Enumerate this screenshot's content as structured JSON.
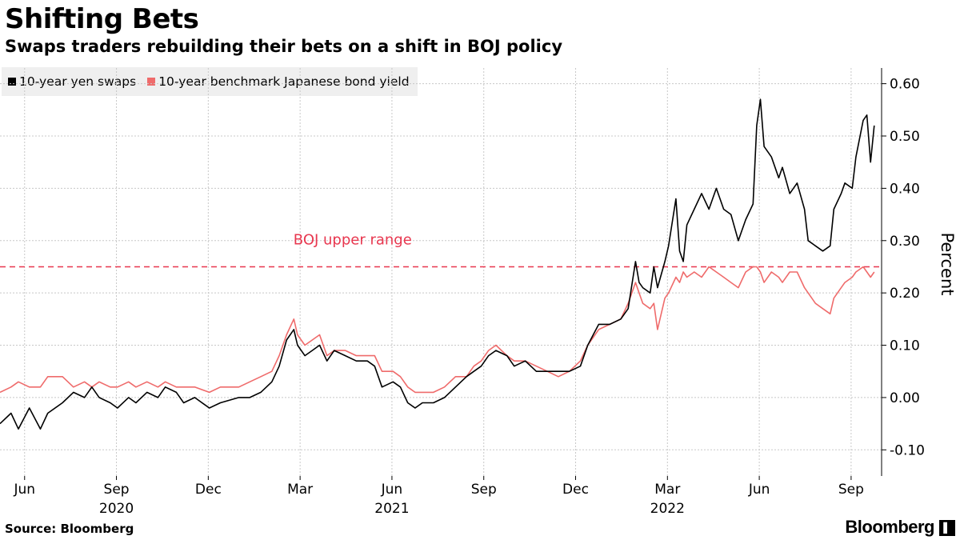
{
  "header": {
    "title": "Shifting Bets",
    "subtitle": "Swaps traders rebuilding their bets on a shift in BOJ policy"
  },
  "footer": {
    "source": "Source: Bloomberg",
    "brand": "Bloomberg",
    "brand_icon": "bloomberg-terminal-icon"
  },
  "chart_data": {
    "type": "line",
    "title": "Shifting Bets",
    "subtitle": "Swaps traders rebuilding their bets on a shift in BOJ policy",
    "xlabel": "",
    "ylabel": "Percent",
    "ylim": [
      -0.15,
      0.63
    ],
    "yticks": [
      0.6,
      0.5,
      0.4,
      0.3,
      0.2,
      0.1,
      0.0,
      -0.1
    ],
    "ytick_labels": [
      "0.60",
      "0.50",
      "0.40",
      "0.30",
      "0.20",
      "0.10",
      "0.00",
      "-0.10"
    ],
    "xlim": [
      2020.35,
      2022.75
    ],
    "xticks": [
      {
        "label": "Jun",
        "x": 2020.417
      },
      {
        "label": "Sep",
        "x": 2020.667
      },
      {
        "label": "Dec",
        "x": 2020.917
      },
      {
        "label": "Mar",
        "x": 2021.167
      },
      {
        "label": "Jun",
        "x": 2021.417
      },
      {
        "label": "Sep",
        "x": 2021.667
      },
      {
        "label": "Dec",
        "x": 2021.917
      },
      {
        "label": "Mar",
        "x": 2022.167
      },
      {
        "label": "Jun",
        "x": 2022.417
      },
      {
        "label": "Sep",
        "x": 2022.667
      }
    ],
    "year_labels": [
      {
        "label": "2020",
        "x": 2020.667
      },
      {
        "label": "2021",
        "x": 2021.417
      },
      {
        "label": "2022",
        "x": 2022.167
      }
    ],
    "grid": true,
    "legend": "top-left",
    "reference_line": {
      "y": 0.25,
      "label": "BOJ upper range",
      "color": "#e8374f"
    },
    "series": [
      {
        "name": "10-year yen swaps",
        "color": "#000000",
        "points": [
          [
            2020.35,
            -0.05
          ],
          [
            2020.38,
            -0.03
          ],
          [
            2020.4,
            -0.06
          ],
          [
            2020.43,
            -0.02
          ],
          [
            2020.46,
            -0.06
          ],
          [
            2020.48,
            -0.03
          ],
          [
            2020.52,
            -0.01
          ],
          [
            2020.55,
            0.01
          ],
          [
            2020.58,
            0.0
          ],
          [
            2020.6,
            0.02
          ],
          [
            2020.62,
            0.0
          ],
          [
            2020.65,
            -0.01
          ],
          [
            2020.67,
            -0.02
          ],
          [
            2020.7,
            0.0
          ],
          [
            2020.72,
            -0.01
          ],
          [
            2020.75,
            0.01
          ],
          [
            2020.78,
            0.0
          ],
          [
            2020.8,
            0.02
          ],
          [
            2020.83,
            0.01
          ],
          [
            2020.85,
            -0.01
          ],
          [
            2020.88,
            0.0
          ],
          [
            2020.92,
            -0.02
          ],
          [
            2020.95,
            -0.01
          ],
          [
            2021.0,
            0.0
          ],
          [
            2021.03,
            0.0
          ],
          [
            2021.06,
            0.01
          ],
          [
            2021.09,
            0.03
          ],
          [
            2021.11,
            0.06
          ],
          [
            2021.13,
            0.11
          ],
          [
            2021.15,
            0.13
          ],
          [
            2021.16,
            0.1
          ],
          [
            2021.18,
            0.08
          ],
          [
            2021.2,
            0.09
          ],
          [
            2021.22,
            0.1
          ],
          [
            2021.24,
            0.07
          ],
          [
            2021.26,
            0.09
          ],
          [
            2021.29,
            0.08
          ],
          [
            2021.32,
            0.07
          ],
          [
            2021.35,
            0.07
          ],
          [
            2021.37,
            0.06
          ],
          [
            2021.39,
            0.02
          ],
          [
            2021.42,
            0.03
          ],
          [
            2021.44,
            0.02
          ],
          [
            2021.46,
            -0.01
          ],
          [
            2021.48,
            -0.02
          ],
          [
            2021.5,
            -0.01
          ],
          [
            2021.53,
            -0.01
          ],
          [
            2021.56,
            0.0
          ],
          [
            2021.59,
            0.02
          ],
          [
            2021.62,
            0.04
          ],
          [
            2021.64,
            0.05
          ],
          [
            2021.66,
            0.06
          ],
          [
            2021.68,
            0.08
          ],
          [
            2021.7,
            0.09
          ],
          [
            2021.73,
            0.08
          ],
          [
            2021.75,
            0.06
          ],
          [
            2021.78,
            0.07
          ],
          [
            2021.81,
            0.05
          ],
          [
            2021.84,
            0.05
          ],
          [
            2021.87,
            0.05
          ],
          [
            2021.9,
            0.05
          ],
          [
            2021.93,
            0.06
          ],
          [
            2021.95,
            0.1
          ],
          [
            2021.98,
            0.14
          ],
          [
            2022.01,
            0.14
          ],
          [
            2022.04,
            0.15
          ],
          [
            2022.06,
            0.17
          ],
          [
            2022.08,
            0.26
          ],
          [
            2022.09,
            0.22
          ],
          [
            2022.1,
            0.21
          ],
          [
            2022.12,
            0.2
          ],
          [
            2022.13,
            0.25
          ],
          [
            2022.14,
            0.21
          ],
          [
            2022.16,
            0.26
          ],
          [
            2022.17,
            0.29
          ],
          [
            2022.19,
            0.38
          ],
          [
            2022.2,
            0.28
          ],
          [
            2022.21,
            0.26
          ],
          [
            2022.22,
            0.33
          ],
          [
            2022.24,
            0.36
          ],
          [
            2022.26,
            0.39
          ],
          [
            2022.28,
            0.36
          ],
          [
            2022.3,
            0.4
          ],
          [
            2022.32,
            0.36
          ],
          [
            2022.34,
            0.35
          ],
          [
            2022.36,
            0.3
          ],
          [
            2022.38,
            0.34
          ],
          [
            2022.4,
            0.37
          ],
          [
            2022.41,
            0.52
          ],
          [
            2022.42,
            0.57
          ],
          [
            2022.43,
            0.48
          ],
          [
            2022.45,
            0.46
          ],
          [
            2022.47,
            0.42
          ],
          [
            2022.48,
            0.44
          ],
          [
            2022.5,
            0.39
          ],
          [
            2022.52,
            0.41
          ],
          [
            2022.54,
            0.36
          ],
          [
            2022.55,
            0.3
          ],
          [
            2022.57,
            0.29
          ],
          [
            2022.59,
            0.28
          ],
          [
            2022.61,
            0.29
          ],
          [
            2022.62,
            0.36
          ],
          [
            2022.64,
            0.39
          ],
          [
            2022.65,
            0.41
          ],
          [
            2022.67,
            0.4
          ],
          [
            2022.68,
            0.46
          ],
          [
            2022.7,
            0.53
          ],
          [
            2022.71,
            0.54
          ],
          [
            2022.72,
            0.45
          ],
          [
            2022.73,
            0.52
          ]
        ]
      },
      {
        "name": "10-year benchmark Japanese bond yield",
        "color": "#ef6b6b",
        "points": [
          [
            2020.35,
            0.01
          ],
          [
            2020.38,
            0.02
          ],
          [
            2020.4,
            0.03
          ],
          [
            2020.43,
            0.02
          ],
          [
            2020.46,
            0.02
          ],
          [
            2020.48,
            0.04
          ],
          [
            2020.52,
            0.04
          ],
          [
            2020.55,
            0.02
          ],
          [
            2020.58,
            0.03
          ],
          [
            2020.6,
            0.02
          ],
          [
            2020.62,
            0.03
          ],
          [
            2020.65,
            0.02
          ],
          [
            2020.67,
            0.02
          ],
          [
            2020.7,
            0.03
          ],
          [
            2020.72,
            0.02
          ],
          [
            2020.75,
            0.03
          ],
          [
            2020.78,
            0.02
          ],
          [
            2020.8,
            0.03
          ],
          [
            2020.83,
            0.02
          ],
          [
            2020.85,
            0.02
          ],
          [
            2020.88,
            0.02
          ],
          [
            2020.92,
            0.01
          ],
          [
            2020.95,
            0.02
          ],
          [
            2021.0,
            0.02
          ],
          [
            2021.03,
            0.03
          ],
          [
            2021.06,
            0.04
          ],
          [
            2021.09,
            0.05
          ],
          [
            2021.11,
            0.08
          ],
          [
            2021.13,
            0.12
          ],
          [
            2021.15,
            0.15
          ],
          [
            2021.16,
            0.12
          ],
          [
            2021.18,
            0.1
          ],
          [
            2021.2,
            0.11
          ],
          [
            2021.22,
            0.12
          ],
          [
            2021.24,
            0.08
          ],
          [
            2021.26,
            0.09
          ],
          [
            2021.29,
            0.09
          ],
          [
            2021.32,
            0.08
          ],
          [
            2021.35,
            0.08
          ],
          [
            2021.37,
            0.08
          ],
          [
            2021.39,
            0.05
          ],
          [
            2021.42,
            0.05
          ],
          [
            2021.44,
            0.04
          ],
          [
            2021.46,
            0.02
          ],
          [
            2021.48,
            0.01
          ],
          [
            2021.5,
            0.01
          ],
          [
            2021.53,
            0.01
          ],
          [
            2021.56,
            0.02
          ],
          [
            2021.59,
            0.04
          ],
          [
            2021.62,
            0.04
          ],
          [
            2021.64,
            0.06
          ],
          [
            2021.66,
            0.07
          ],
          [
            2021.68,
            0.09
          ],
          [
            2021.7,
            0.1
          ],
          [
            2021.73,
            0.08
          ],
          [
            2021.75,
            0.07
          ],
          [
            2021.78,
            0.07
          ],
          [
            2021.81,
            0.06
          ],
          [
            2021.84,
            0.05
          ],
          [
            2021.87,
            0.04
          ],
          [
            2021.9,
            0.05
          ],
          [
            2021.93,
            0.07
          ],
          [
            2021.95,
            0.1
          ],
          [
            2021.98,
            0.13
          ],
          [
            2022.01,
            0.14
          ],
          [
            2022.04,
            0.15
          ],
          [
            2022.06,
            0.18
          ],
          [
            2022.08,
            0.22
          ],
          [
            2022.09,
            0.2
          ],
          [
            2022.1,
            0.18
          ],
          [
            2022.12,
            0.17
          ],
          [
            2022.13,
            0.18
          ],
          [
            2022.14,
            0.13
          ],
          [
            2022.16,
            0.19
          ],
          [
            2022.17,
            0.2
          ],
          [
            2022.19,
            0.23
          ],
          [
            2022.2,
            0.22
          ],
          [
            2022.21,
            0.24
          ],
          [
            2022.22,
            0.23
          ],
          [
            2022.24,
            0.24
          ],
          [
            2022.26,
            0.23
          ],
          [
            2022.28,
            0.25
          ],
          [
            2022.3,
            0.24
          ],
          [
            2022.32,
            0.23
          ],
          [
            2022.34,
            0.22
          ],
          [
            2022.36,
            0.21
          ],
          [
            2022.38,
            0.24
          ],
          [
            2022.4,
            0.25
          ],
          [
            2022.41,
            0.25
          ],
          [
            2022.42,
            0.24
          ],
          [
            2022.43,
            0.22
          ],
          [
            2022.45,
            0.24
          ],
          [
            2022.47,
            0.23
          ],
          [
            2022.48,
            0.22
          ],
          [
            2022.5,
            0.24
          ],
          [
            2022.52,
            0.24
          ],
          [
            2022.54,
            0.21
          ],
          [
            2022.55,
            0.2
          ],
          [
            2022.57,
            0.18
          ],
          [
            2022.59,
            0.17
          ],
          [
            2022.61,
            0.16
          ],
          [
            2022.62,
            0.19
          ],
          [
            2022.64,
            0.21
          ],
          [
            2022.65,
            0.22
          ],
          [
            2022.67,
            0.23
          ],
          [
            2022.68,
            0.24
          ],
          [
            2022.7,
            0.25
          ],
          [
            2022.71,
            0.24
          ],
          [
            2022.72,
            0.23
          ],
          [
            2022.73,
            0.24
          ]
        ]
      }
    ]
  }
}
